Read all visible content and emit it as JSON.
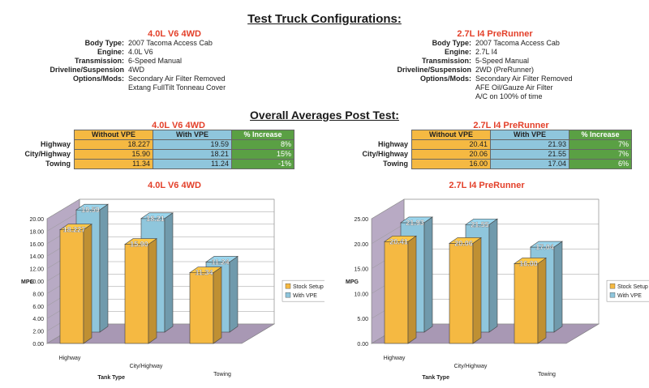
{
  "page": {
    "title": "Test Truck Configurations:",
    "averages_title": "Overall Averages Post Test:"
  },
  "configs": [
    {
      "name": "4.0L V6 4WD",
      "fields": [
        {
          "k": "Body Type:",
          "v": "2007 Tacoma Access Cab"
        },
        {
          "k": "Engine:",
          "v": "4.0L V6"
        },
        {
          "k": "Transmission:",
          "v": "6-Speed Manual"
        },
        {
          "k": "Driveline/Suspension",
          "v": "4WD"
        },
        {
          "k": "Options/Mods:",
          "v": "Secondary Air Filter Removed"
        },
        {
          "k": "",
          "v": "Extang FullTilt Tonneau Cover"
        }
      ]
    },
    {
      "name": "2.7L I4 PreRunner",
      "fields": [
        {
          "k": "Body Type:",
          "v": "2007 Tacoma Access Cab"
        },
        {
          "k": "Engine:",
          "v": "2.7L I4"
        },
        {
          "k": "Transmission:",
          "v": "5-Speed Manual"
        },
        {
          "k": "Driveline/Suspension",
          "v": "2WD (PreRunner)"
        },
        {
          "k": "Options/Mods:",
          "v": "Secondary Air Filter Removed"
        },
        {
          "k": "",
          "v": "AFE Oil/Gauze Air Filter"
        },
        {
          "k": "",
          "v": "A/C on 100% of time"
        }
      ]
    }
  ],
  "tables": [
    {
      "name": "4.0L V6 4WD",
      "headers": [
        "Without VPE",
        "With VPE",
        "% Increase"
      ],
      "rows": [
        {
          "label": "Highway",
          "a": "18.227",
          "b": "19.59",
          "c": "8%"
        },
        {
          "label": "City/Highway",
          "a": "15.90",
          "b": "18.21",
          "c": "15%"
        },
        {
          "label": "Towing",
          "a": "11.34",
          "b": "11.24",
          "c": "-1%"
        }
      ]
    },
    {
      "name": "2.7L I4 PreRunner",
      "headers": [
        "Without VPE",
        "With VPE",
        "% Increase"
      ],
      "rows": [
        {
          "label": "Highway",
          "a": "20.41",
          "b": "21.93",
          "c": "7%"
        },
        {
          "label": "City/Highway",
          "a": "20.06",
          "b": "21.55",
          "c": "7%"
        },
        {
          "label": "Towing",
          "a": "16.00",
          "b": "17.04",
          "c": "6%"
        }
      ]
    }
  ],
  "colors": {
    "stock": "#f5b942",
    "vpe": "#8fc6dc",
    "floor": "#b9a9c3",
    "wall": "#ffffff",
    "title_red": "#e3402a",
    "pct_green": "#5aa044"
  },
  "chart_data": [
    {
      "type": "bar",
      "title": "4.0L V6 4WD",
      "categories": [
        "Highway",
        "City/Highway",
        "Towing"
      ],
      "series": [
        {
          "name": "Stock Setup",
          "values": [
            18.227,
            15.9,
            11.34
          ],
          "labels": [
            "18.227",
            "15.90",
            "11.34"
          ]
        },
        {
          "name": "With VPE",
          "values": [
            19.59,
            18.21,
            11.24
          ],
          "labels": [
            "19.59",
            "18.21",
            "11.24"
          ]
        }
      ],
      "xlabel": "Tank Type",
      "ylabel": "MPG",
      "ylim": [
        0,
        20
      ],
      "yticks": [
        "0.00",
        "2.00",
        "4.00",
        "6.00",
        "8.00",
        "10.00",
        "12.00",
        "14.00",
        "16.00",
        "18.00",
        "20.00"
      ],
      "legend": "right",
      "grid": true
    },
    {
      "type": "bar",
      "title": "2.7L I4 PreRunner",
      "categories": [
        "Highway",
        "City/Highway",
        "Towing"
      ],
      "series": [
        {
          "name": "Stock Setup",
          "values": [
            20.41,
            20.06,
            16.0
          ],
          "labels": [
            "20.41",
            "20.06",
            "16.00"
          ]
        },
        {
          "name": "With VPE",
          "values": [
            21.93,
            21.55,
            17.04
          ],
          "labels": [
            "21.93",
            "21.55",
            "17.04"
          ]
        }
      ],
      "xlabel": "Tank Type",
      "ylabel": "MPG",
      "ylim": [
        0,
        25
      ],
      "yticks": [
        "0.00",
        "5.00",
        "10.00",
        "15.00",
        "20.00",
        "25.00"
      ],
      "legend": "right",
      "grid": true
    }
  ]
}
